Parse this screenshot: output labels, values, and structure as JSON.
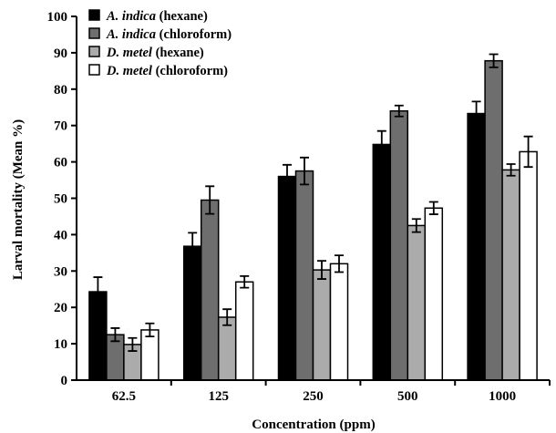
{
  "chart_data": {
    "type": "bar",
    "xlabel": "Concentration (ppm)",
    "ylabel": "Larval mortality (Mean %)",
    "ylim": [
      0,
      100
    ],
    "yticks": [
      "0",
      "10",
      "20",
      "30",
      "40",
      "50",
      "60",
      "70",
      "80",
      "90",
      "100"
    ],
    "categories": [
      "62.5",
      "125",
      "250",
      "500",
      "1000"
    ],
    "legend_position": "top-left",
    "grid": false,
    "series": [
      {
        "name": "A. indica (hexane)",
        "species": "A. indica",
        "solvent": "(hexane)",
        "color": "#000000",
        "values": [
          24.3,
          36.8,
          56.0,
          64.8,
          73.3
        ],
        "errors": [
          4.0,
          3.7,
          3.2,
          3.7,
          3.3
        ]
      },
      {
        "name": "A. indica (chloroform)",
        "species": "A. indica",
        "solvent": "(chloroform)",
        "color": "#6e6e6e",
        "values": [
          12.5,
          49.5,
          57.5,
          74.0,
          87.8
        ],
        "errors": [
          1.8,
          3.8,
          3.7,
          1.5,
          1.8
        ]
      },
      {
        "name": "D. metel (hexane)",
        "species": "D. metel",
        "solvent": "(hexane)",
        "color": "#ababab",
        "values": [
          9.8,
          17.3,
          30.3,
          42.5,
          57.8
        ],
        "errors": [
          1.8,
          2.2,
          2.5,
          1.8,
          1.6
        ]
      },
      {
        "name": "D. metel (chloroform)",
        "species": "D. metel",
        "solvent": "(chloroform)",
        "color": "#ffffff",
        "values": [
          13.8,
          27.0,
          32.0,
          47.3,
          62.8
        ],
        "errors": [
          1.8,
          1.6,
          2.3,
          1.7,
          4.2
        ]
      }
    ]
  }
}
